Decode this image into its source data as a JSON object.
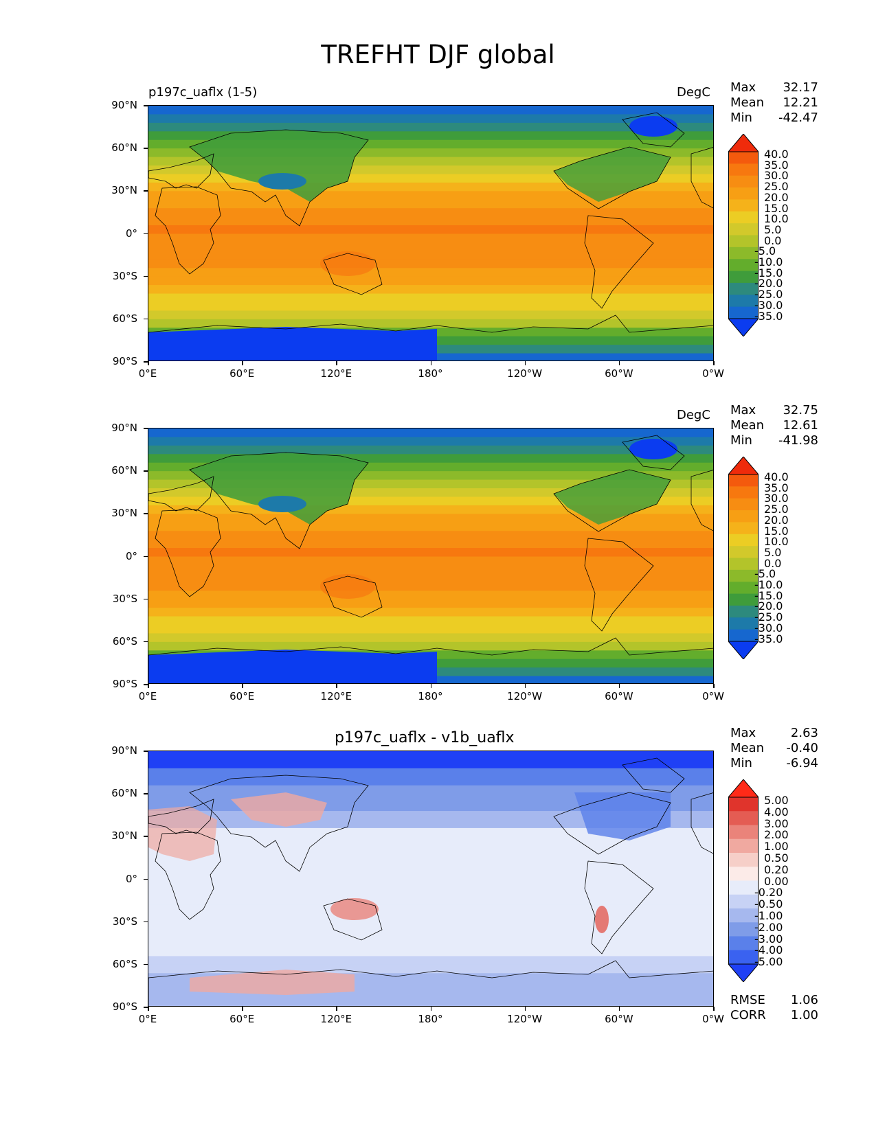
{
  "figure_title": "TREFHT DJF global",
  "y_ticks": [
    "90°N",
    "60°N",
    "30°N",
    "0°",
    "30°S",
    "60°S",
    "90°S"
  ],
  "x_ticks": [
    "0°E",
    "60°E",
    "120°E",
    "180°",
    "120°W",
    "60°W",
    "0°W"
  ],
  "colors": {
    "temp_scale": [
      "#0b3cf0",
      "#1667cf",
      "#1d7aa9",
      "#2d8a7d",
      "#3f9c3b",
      "#63ad2c",
      "#8cba2a",
      "#b3c42a",
      "#d2c92b",
      "#eccd24",
      "#f5b21a",
      "#f79f14",
      "#f78d12",
      "#f7780f",
      "#f45a0d",
      "#ef2b0b"
    ],
    "diff_scale": [
      "#1f40f5",
      "#3a62f0",
      "#5a80ea",
      "#7f9ce8",
      "#a6b8ee",
      "#c7d2f5",
      "#e7ecfa",
      "#fcebe8",
      "#f6cfc8",
      "#f0a9a0",
      "#ea837a",
      "#e45c53",
      "#e0342c",
      "#ff2a18"
    ],
    "land_outline": "#000000"
  },
  "panels": [
    {
      "left_title": "p197c_uaflx (1-5)",
      "units": "DegC",
      "stats": {
        "max_label": "Max",
        "max": "32.17",
        "mean_label": "Mean",
        "mean": "12.21",
        "min_label": "Min",
        "min": "-42.47"
      },
      "colorbar_labels": [
        "40.0",
        "35.0",
        "30.0",
        "25.0",
        "20.0",
        "15.0",
        "10.0",
        "5.0",
        "0.0",
        "-5.0",
        "-10.0",
        "-15.0",
        "-20.0",
        "-25.0",
        "-30.0",
        "-35.0"
      ]
    },
    {
      "left_title": "",
      "units": "DegC",
      "stats": {
        "max_label": "Max",
        "max": "32.75",
        "mean_label": "Mean",
        "mean": "12.61",
        "min_label": "Min",
        "min": "-41.98"
      },
      "colorbar_labels": [
        "40.0",
        "35.0",
        "30.0",
        "25.0",
        "20.0",
        "15.0",
        "10.0",
        "5.0",
        "0.0",
        "-5.0",
        "-10.0",
        "-15.0",
        "-20.0",
        "-25.0",
        "-30.0",
        "-35.0"
      ]
    },
    {
      "center_title": "p197c_uaflx - v1b_uaflx",
      "stats": {
        "max_label": "Max",
        "max": "2.63",
        "mean_label": "Mean",
        "mean": "-0.40",
        "min_label": "Min",
        "min": "-6.94"
      },
      "colorbar_labels": [
        "5.00",
        "4.00",
        "3.00",
        "2.00",
        "1.00",
        "0.50",
        "0.20",
        "0.00",
        "-0.20",
        "-0.50",
        "-1.00",
        "-2.00",
        "-3.00",
        "-4.00",
        "-5.00"
      ],
      "rmse_label": "RMSE",
      "rmse": "1.06",
      "corr_label": "CORR",
      "corr": "1.00"
    }
  ]
}
